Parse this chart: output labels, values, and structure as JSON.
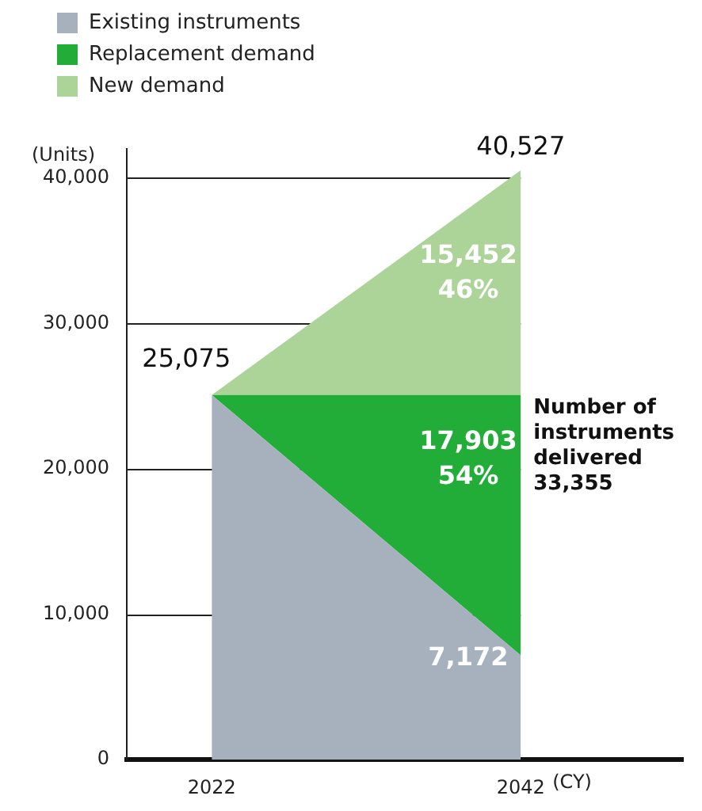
{
  "chart_data": {
    "type": "area",
    "stacked": true,
    "x": [
      2022,
      2042
    ],
    "xlim": [
      2016.5,
      2052.5
    ],
    "xticks": [
      {
        "value": 2022,
        "label": "2022"
      },
      {
        "value": 2042,
        "label": "2042"
      }
    ],
    "xlabel": "(CY)",
    "ylabel": "(Units)",
    "ylim": [
      0,
      42000
    ],
    "yticks": [
      {
        "value": 0,
        "label": "0"
      },
      {
        "value": 10000,
        "label": "10,000"
      },
      {
        "value": 20000,
        "label": "20,000"
      },
      {
        "value": 30000,
        "label": "30,000"
      },
      {
        "value": 40000,
        "label": "40,000"
      }
    ],
    "grid": "y",
    "legend": "top left",
    "series": [
      {
        "name": "Existing instruments",
        "color": "#a6b1bd",
        "values": [
          25075,
          7172
        ],
        "value_labels": [
          "25,075",
          "7,172"
        ]
      },
      {
        "name": "Replacement demand",
        "color": "#22ac38",
        "values": [
          0,
          17903
        ],
        "value_labels": [
          null,
          "17,903"
        ]
      },
      {
        "name": "New demand",
        "color": "#acd498",
        "values": [
          0,
          15452
        ],
        "value_labels": [
          null,
          "15,452"
        ]
      }
    ],
    "totals": [
      null,
      "40,527"
    ],
    "annotations": [
      "46%",
      "54%",
      "Number of instruments delivered 33,355"
    ]
  }
}
